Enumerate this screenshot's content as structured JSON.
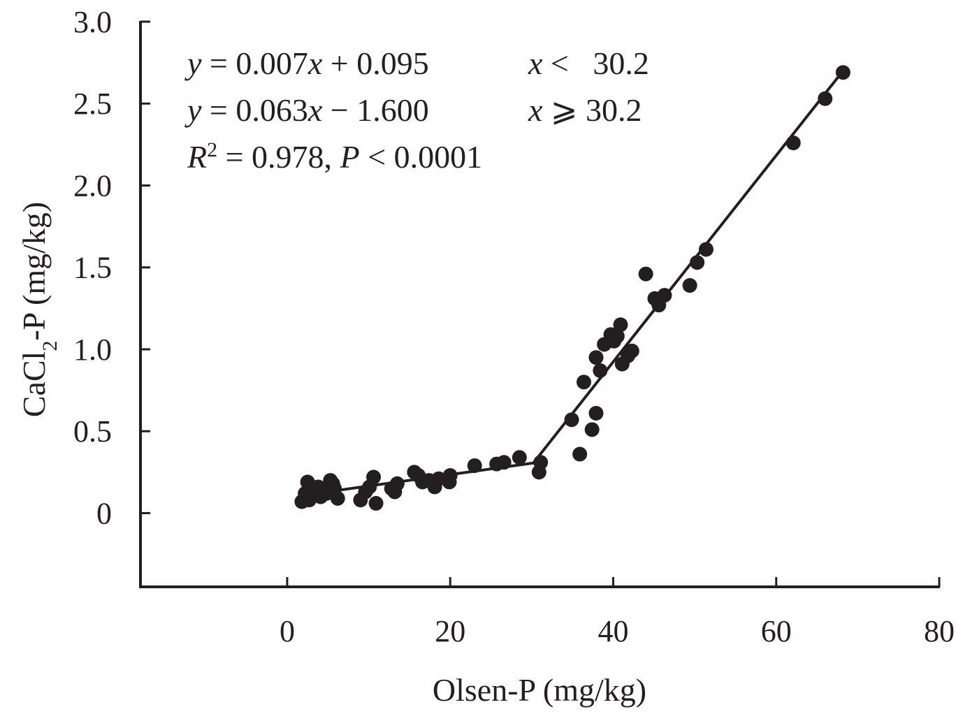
{
  "chart_data": {
    "type": "scatter",
    "title": "",
    "xlabel": "Olsen-P (mg/kg)",
    "ylabel": "CaCl2-P (mg/kg)",
    "ylabel_parts": {
      "main": "CaCl",
      "sub1": "2",
      "rest": "-P (mg/kg)"
    },
    "xlim": [
      -18,
      80
    ],
    "ylim": [
      -0.45,
      3.0
    ],
    "xticks": [
      0,
      20,
      40,
      60,
      80
    ],
    "yticks": [
      0,
      0.5,
      1.0,
      1.5,
      2.0,
      2.5,
      3.0
    ],
    "xtick_labels": [
      "0",
      "20",
      "40",
      "60",
      "80"
    ],
    "ytick_labels": [
      "0",
      "0.5",
      "1.0",
      "1.5",
      "2.0",
      "2.5",
      "3.0"
    ],
    "grid": false,
    "annotations": {
      "eq1": {
        "y": "y",
        "eq": " = 0.007",
        "x": "x",
        "rest": " + 0.095",
        "cond_x": "x",
        "cond": " <   30.2"
      },
      "eq2": {
        "y": "y",
        "eq": " = 0.063",
        "x": "x",
        "rest": " − 1.600",
        "cond_x": "x",
        "cond": " ⩾ 30.2"
      },
      "eq3": {
        "r": "R",
        "sup": "2",
        "mid": " = 0.978, ",
        "p": "P",
        "rest": " < 0.0001"
      }
    },
    "fit_segments": [
      {
        "name": "segment-1",
        "x": [
          2,
          30.2
        ],
        "y": [
          0.11,
          0.306
        ]
      },
      {
        "name": "segment-2",
        "x": [
          30.2,
          68.2
        ],
        "y": [
          0.306,
          2.7
        ]
      }
    ],
    "points": {
      "x": [
        1.8,
        2.2,
        2.5,
        2.7,
        3.0,
        3.3,
        3.8,
        4.1,
        4.4,
        4.8,
        5.3,
        5.6,
        5.8,
        6.2,
        9.0,
        9.6,
        10.1,
        10.6,
        10.9,
        12.8,
        13.2,
        13.5,
        15.6,
        16.1,
        16.6,
        17.4,
        18.1,
        18.6,
        19.9,
        20.0,
        23.0,
        25.7,
        26.6,
        28.5,
        30.9,
        31.1,
        34.9,
        35.9,
        36.4,
        37.4,
        37.9,
        37.9,
        38.4,
        38.9,
        39.7,
        40.1,
        40.5,
        40.9,
        41.1,
        41.8,
        42.3,
        44.0,
        45.1,
        45.6,
        46.3,
        49.4,
        50.3,
        51.4,
        62.1,
        66.0,
        68.2
      ],
      "y": [
        0.07,
        0.12,
        0.19,
        0.08,
        0.1,
        0.14,
        0.16,
        0.1,
        0.15,
        0.12,
        0.2,
        0.18,
        0.15,
        0.09,
        0.08,
        0.13,
        0.16,
        0.22,
        0.06,
        0.15,
        0.13,
        0.18,
        0.25,
        0.23,
        0.19,
        0.2,
        0.16,
        0.21,
        0.19,
        0.23,
        0.29,
        0.3,
        0.31,
        0.34,
        0.25,
        0.31,
        0.57,
        0.36,
        0.8,
        0.51,
        0.61,
        0.95,
        0.87,
        1.03,
        1.09,
        1.05,
        1.08,
        1.15,
        0.91,
        0.96,
        0.99,
        1.46,
        1.31,
        1.27,
        1.33,
        1.39,
        1.53,
        1.61,
        2.26,
        2.53,
        2.69
      ]
    },
    "colors": {
      "ink": "#231f20",
      "background": "#ffffff"
    }
  }
}
